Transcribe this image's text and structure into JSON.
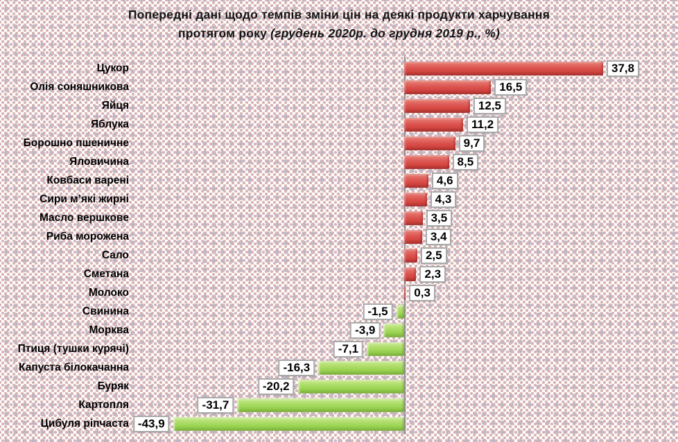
{
  "title": {
    "line1": "Попередні дані щодо  темпів зміни цін на деякі продукти харчування",
    "line2_plain": "протягом року",
    "line2_italic": "(грудень 2020р. до грудня 2019 р., %)"
  },
  "chart_data": {
    "type": "bar",
    "orientation": "horizontal",
    "title": "Попередні дані щодо темпів зміни цін на деякі продукти харчування протягом року (грудень 2020р. до грудня 2019 р., %)",
    "xlabel": "",
    "ylabel": "",
    "categories": [
      "Цукор",
      "Олія соняшникова",
      "Яйця",
      "Яблука",
      "Борошно пшеничне",
      "Яловичина",
      "Ковбаси варені",
      "Сири м’які жирні",
      "Масло вершкове",
      "Риба морожена",
      "Сало",
      "Сметана",
      "Молоко",
      "Свинина",
      "Морква",
      "Птиця (тушки курячі)",
      "Капуста білокачанна",
      "Буряк",
      "Картопля",
      "Цибуля ріпчаста"
    ],
    "values": [
      37.8,
      16.5,
      12.5,
      11.2,
      9.7,
      8.5,
      4.6,
      4.3,
      3.5,
      3.4,
      2.5,
      2.3,
      0.3,
      -1.5,
      -3.9,
      -7.1,
      -16.3,
      -20.2,
      -31.7,
      -43.9
    ],
    "value_labels": [
      "37,8",
      "16,5",
      "12,5",
      "11,2",
      "9,7",
      "8,5",
      "4,6",
      "4,3",
      "3,5",
      "3,4",
      "2,5",
      "2,3",
      "0,3",
      "-1,5",
      "-3,9",
      "-7,1",
      "-16,3",
      "-20,2",
      "-31,7",
      "-43,9"
    ],
    "decimal_separator": ",",
    "colors": {
      "positive_bar": "#d94f4f",
      "negative_bar": "#a2d95e",
      "axis_line": "#8f8f8f",
      "value_box_bg": "#ffffff",
      "value_box_border": "#a9a9a9",
      "title_text": "#141414",
      "background_dot_pink": "#d9b3b3",
      "background_dot_blue": "#b9b7cc"
    },
    "xlim": [
      -52,
      52
    ],
    "grid": false,
    "legend": false,
    "data_labels": true
  }
}
